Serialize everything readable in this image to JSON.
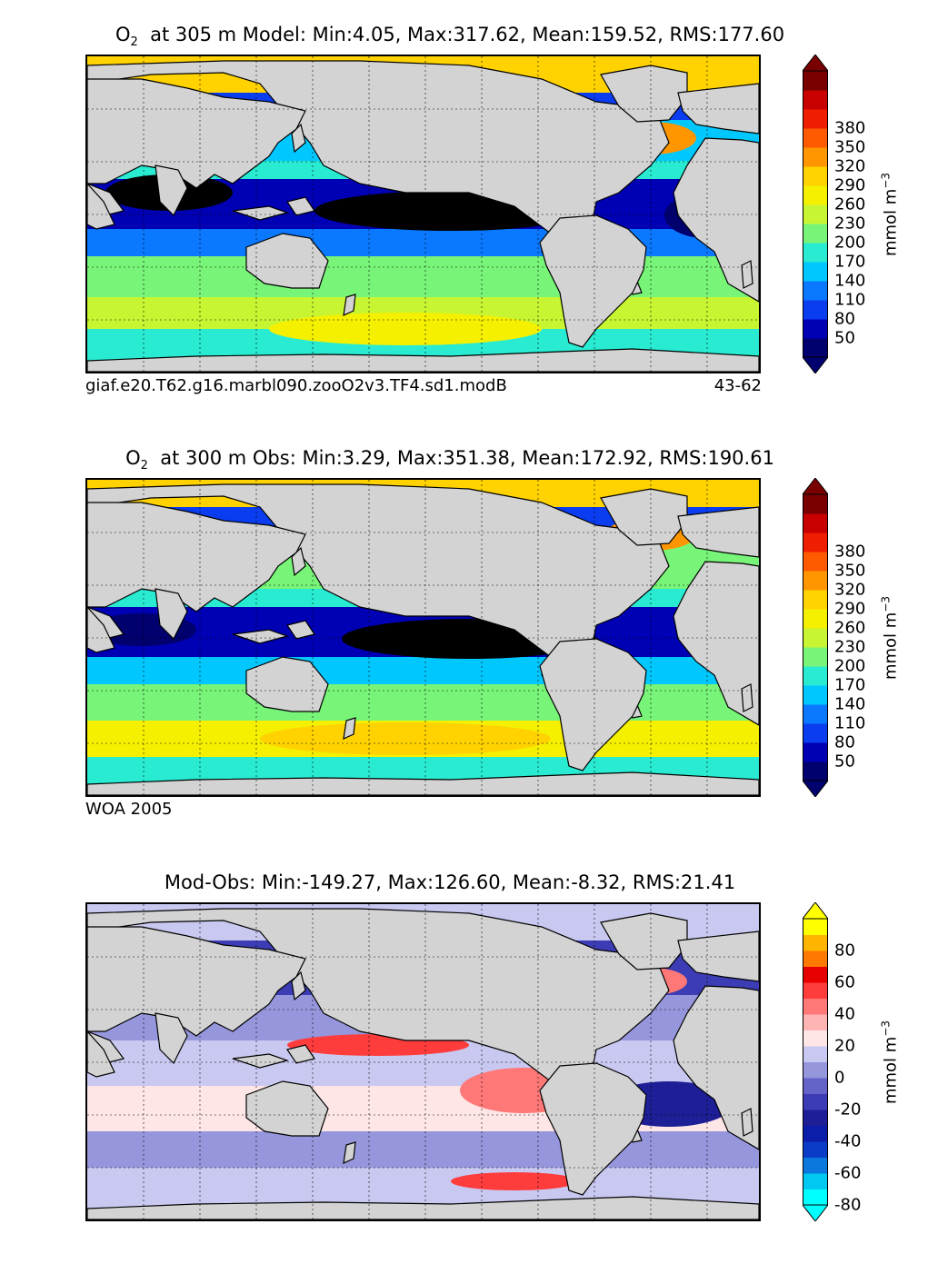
{
  "chart_data": [
    {
      "type": "heatmap",
      "title_prefix": "O",
      "title_subscript": "2",
      "title_rest": "at 305 m Model: Min:4.05, Max:317.62, Mean:159.52, RMS:177.60",
      "note_left": "giaf.e20.T62.g16.marbl090.zooO2v3.TF4.sd1.modB",
      "note_right": "43-62",
      "colorbar_label_main": "mmol m",
      "colorbar_label_sup": "−3",
      "colorbar_ticks": [
        "50",
        "80",
        "110",
        "140",
        "170",
        "200",
        "230",
        "260",
        "290",
        "320",
        "350",
        "380"
      ],
      "colorbar_colors": [
        "#00006e",
        "#0000b4",
        "#0a3cf0",
        "#0a78ff",
        "#00c8ff",
        "#28ebd2",
        "#78f578",
        "#c8f532",
        "#f5f000",
        "#ffd200",
        "#ff9600",
        "#ff5a00",
        "#f01e00",
        "#c80000",
        "#780000"
      ],
      "colorbar_extend": "both",
      "min": 4.05,
      "max": 317.62,
      "mean": 159.52,
      "rms": 177.6
    },
    {
      "type": "heatmap",
      "title_prefix": "O",
      "title_subscript": "2",
      "title_rest": "at 300 m Obs: Min:3.29, Max:351.38, Mean:172.92, RMS:190.61",
      "note_left": "WOA 2005",
      "note_right": "",
      "colorbar_label_main": "mmol m",
      "colorbar_label_sup": "−3",
      "colorbar_ticks": [
        "50",
        "80",
        "110",
        "140",
        "170",
        "200",
        "230",
        "260",
        "290",
        "320",
        "350",
        "380"
      ],
      "colorbar_colors": [
        "#00006e",
        "#0000b4",
        "#0a3cf0",
        "#0a78ff",
        "#00c8ff",
        "#28ebd2",
        "#78f578",
        "#c8f532",
        "#f5f000",
        "#ffd200",
        "#ff9600",
        "#ff5a00",
        "#f01e00",
        "#c80000",
        "#780000"
      ],
      "colorbar_extend": "both",
      "min": 3.29,
      "max": 351.38,
      "mean": 172.92,
      "rms": 190.61
    },
    {
      "type": "heatmap",
      "title_prefix": "",
      "title_subscript": "",
      "title_rest": "Mod-Obs: Min:-149.27, Max:126.60, Mean:-8.32, RMS:21.41",
      "note_left": "",
      "note_right": "",
      "colorbar_label_main": "mmol m",
      "colorbar_label_sup": "−3",
      "colorbar_ticks": [
        "-80",
        "-60",
        "-40",
        "-20",
        "0",
        "20",
        "40",
        "60",
        "80"
      ],
      "colorbar_colors": [
        "#00ffff",
        "#00c8f0",
        "#0a78dc",
        "#0a3cc8",
        "#0a1eaa",
        "#1e1e96",
        "#3c3cb4",
        "#6464c8",
        "#9696dc",
        "#c8c8f0",
        "#ffe6e6",
        "#ffb4b4",
        "#ff7878",
        "#ff3c3c",
        "#e60000",
        "#ff7800",
        "#ffb400",
        "#ffff00"
      ],
      "colorbar_extend": "both",
      "min": -149.27,
      "max": 126.6,
      "mean": -8.32,
      "rms": 21.41
    }
  ]
}
